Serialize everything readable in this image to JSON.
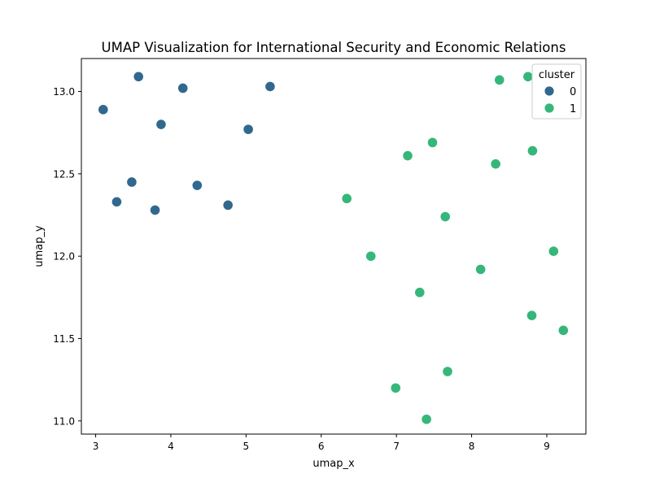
{
  "chart_data": {
    "type": "scatter",
    "title": "UMAP Visualization for International Security and Economic Relations",
    "xlabel": "umap_x",
    "ylabel": "umap_y",
    "xlim": [
      2.81,
      9.52
    ],
    "ylim": [
      10.92,
      13.2
    ],
    "xticks": [
      3,
      4,
      5,
      6,
      7,
      8,
      9
    ],
    "yticks": [
      11.0,
      11.5,
      12.0,
      12.5,
      13.0
    ],
    "ytick_labels": [
      "11.0",
      "11.5",
      "12.0",
      "12.5",
      "13.0"
    ],
    "grid": false,
    "legend": {
      "title": "cluster",
      "placement": "top-right"
    },
    "series": [
      {
        "name": "0",
        "color": "#31688e",
        "points": [
          [
            3.1,
            12.89
          ],
          [
            3.57,
            13.09
          ],
          [
            3.87,
            12.8
          ],
          [
            4.16,
            13.02
          ],
          [
            3.48,
            12.45
          ],
          [
            3.28,
            12.33
          ],
          [
            3.79,
            12.28
          ],
          [
            4.35,
            12.43
          ],
          [
            4.76,
            12.31
          ],
          [
            5.03,
            12.77
          ],
          [
            5.32,
            13.03
          ]
        ]
      },
      {
        "name": "1",
        "color": "#35b779",
        "points": [
          [
            8.37,
            13.07
          ],
          [
            8.75,
            13.09
          ],
          [
            7.48,
            12.69
          ],
          [
            7.15,
            12.61
          ],
          [
            8.81,
            12.64
          ],
          [
            8.32,
            12.56
          ],
          [
            6.34,
            12.35
          ],
          [
            7.65,
            12.24
          ],
          [
            6.66,
            12.0
          ],
          [
            9.09,
            12.03
          ],
          [
            8.12,
            11.92
          ],
          [
            7.31,
            11.78
          ],
          [
            8.8,
            11.64
          ],
          [
            9.22,
            11.55
          ],
          [
            7.68,
            11.3
          ],
          [
            6.99,
            11.2
          ],
          [
            7.4,
            11.01
          ]
        ]
      }
    ]
  }
}
